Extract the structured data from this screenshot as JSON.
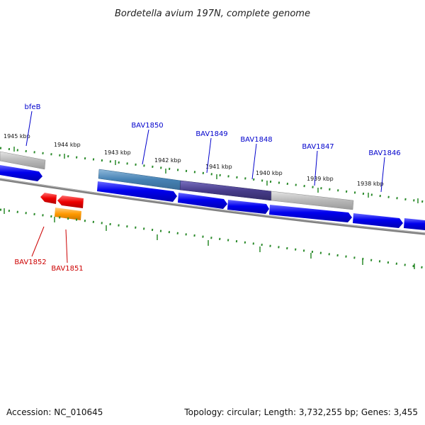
{
  "title": "Bordetella avium 197N, complete genome",
  "footer": {
    "accession": "Accession: NC_010645",
    "topology": "Topology: circular; Length: 3,732,255 bp; Genes: 3,455"
  },
  "ticks": [
    "1945 kbp",
    "1944 kbp",
    "1943 kbp",
    "1942 kbp",
    "1941 kbp",
    "1940 kbp",
    "1939 kbp",
    "1938 kbp"
  ],
  "genes_forward": [
    "bfeB",
    "BAV1850",
    "BAV1849",
    "BAV1848",
    "BAV1847",
    "BAV1846"
  ],
  "genes_reverse": [
    "BAV1852",
    "BAV1851"
  ],
  "colors": {
    "cds_forward": "#0000e6",
    "cds_reverse": "#e60000",
    "cds_orange": "#ff9900",
    "feature_steel": "#4682b4",
    "feature_slate": "#483d8b",
    "feature_gray": "#b8b8b8",
    "backbone": "#808080",
    "tick": "#2a8a2a"
  }
}
